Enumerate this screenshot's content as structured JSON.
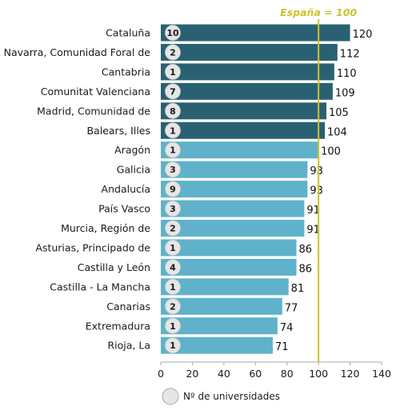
{
  "chart_data": {
    "type": "bar",
    "orientation": "horizontal",
    "categories": [
      "Cataluña",
      "Navarra, Comunidad Foral de",
      "Cantabria",
      "Comunitat Valenciana",
      "Madrid, Comunidad de",
      "Balears, Illes",
      "Aragón",
      "Galicia",
      "Andalucía",
      "País Vasco",
      "Murcia, Región de",
      "Asturias, Principado de",
      "Castilla y León",
      "Castilla - La Mancha",
      "Canarias",
      "Extremadura",
      "Rioja, La"
    ],
    "values": [
      120,
      112,
      110,
      109,
      105,
      104,
      100,
      93,
      93,
      91,
      91,
      86,
      86,
      81,
      77,
      74,
      71
    ],
    "university_counts": [
      10,
      2,
      1,
      7,
      8,
      1,
      1,
      3,
      9,
      3,
      2,
      1,
      4,
      1,
      2,
      1,
      1
    ],
    "xlim": [
      0,
      140
    ],
    "xticks": [
      0,
      20,
      40,
      60,
      80,
      100,
      120,
      140
    ],
    "reference_line": {
      "value": 100,
      "label": "España = 100",
      "color": "#c9c52f"
    },
    "colors": {
      "above_reference": "#2a6172",
      "at_or_below_reference": "#5fb2c9",
      "count_marker": "#e6e6e6"
    },
    "legend": {
      "position": "bottom-left",
      "label": "Nº de universidades"
    },
    "grid": false
  }
}
